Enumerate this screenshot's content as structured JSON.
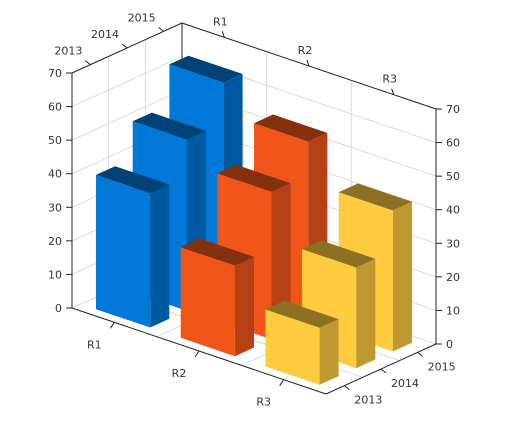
{
  "chart_data": {
    "type": "bar",
    "subtype": "3d-column",
    "categories": [
      "R1",
      "R2",
      "R3"
    ],
    "depth_categories": [
      "2013",
      "2014",
      "2015"
    ],
    "series": [
      {
        "name": "2013",
        "values": [
          40,
          27,
          17
        ]
      },
      {
        "name": "2014",
        "values": [
          51,
          44,
          30
        ]
      },
      {
        "name": "2015",
        "values": [
          63,
          54,
          42
        ]
      }
    ],
    "colors": {
      "R1": "#0078D7",
      "R2": "#F05519",
      "R3": "#FFCC40"
    },
    "ylim": [
      0,
      70
    ],
    "y_ticks": [
      0,
      10,
      20,
      30,
      40,
      50,
      60,
      70
    ],
    "grid": true,
    "legend": "none",
    "title": "",
    "xlabel": "",
    "ylabel": ""
  }
}
